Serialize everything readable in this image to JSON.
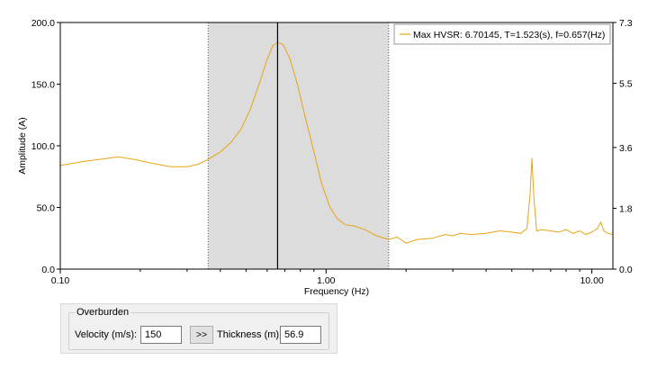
{
  "chart_data": {
    "type": "line",
    "xlabel": "Frequency (Hz)",
    "ylabel": "Amplitude (A)",
    "x_scale": "log",
    "xlim": [
      0.1,
      12.0
    ],
    "ylim": [
      0,
      200
    ],
    "y2lim": [
      0,
      7.3
    ],
    "x_ticks": [
      {
        "v": 0.1,
        "label": "0.10"
      },
      {
        "v": 1,
        "label": "1.00"
      },
      {
        "v": 10,
        "label": "10.00"
      }
    ],
    "y_ticks": [
      {
        "v": 0,
        "label": "0.0"
      },
      {
        "v": 50,
        "label": "50.0"
      },
      {
        "v": 100,
        "label": "100.0"
      },
      {
        "v": 150,
        "label": "150.0"
      },
      {
        "v": 200,
        "label": "200.0"
      }
    ],
    "y2_ticks": [
      {
        "v": 0,
        "label": "0.0"
      },
      {
        "v": 1.8,
        "label": "1.8"
      },
      {
        "v": 3.6,
        "label": "3.6"
      },
      {
        "v": 5.5,
        "label": "5.5"
      },
      {
        "v": 7.3,
        "label": "7.3"
      }
    ],
    "grid": false,
    "legend_position": "top-right",
    "series_color": "#e8a317",
    "shaded_band": {
      "x_start": 0.36,
      "x_end": 1.72,
      "color": "#dcdcdc"
    },
    "peak_marker_x": 0.657,
    "series": [
      {
        "name": "Max HVSR: 6.70145, T=1.523(s), f=0.657(Hz)",
        "x": [
          0.1,
          0.12,
          0.14,
          0.165,
          0.19,
          0.22,
          0.26,
          0.3,
          0.33,
          0.36,
          0.4,
          0.44,
          0.48,
          0.52,
          0.56,
          0.6,
          0.63,
          0.657,
          0.69,
          0.73,
          0.78,
          0.84,
          0.9,
          0.96,
          1.03,
          1.1,
          1.18,
          1.28,
          1.4,
          1.55,
          1.72,
          1.85,
          2.0,
          2.2,
          2.5,
          2.8,
          3.0,
          3.2,
          3.5,
          4.0,
          4.5,
          5.0,
          5.4,
          5.7,
          5.85,
          5.95,
          6.05,
          6.2,
          6.5,
          7.0,
          7.5,
          8.0,
          8.5,
          9.0,
          9.5,
          10.0,
          10.5,
          10.8,
          11.1,
          11.5,
          12.0
        ],
        "y": [
          84,
          87,
          89,
          91,
          89,
          86,
          83,
          83,
          85,
          89,
          95,
          103,
          114,
          130,
          150,
          170,
          181,
          184,
          182,
          171,
          150,
          121,
          95,
          70,
          51,
          41,
          36,
          35,
          32,
          27,
          24,
          26,
          21,
          24,
          25,
          28,
          27,
          29,
          28,
          29,
          31,
          30,
          29,
          33,
          60,
          90,
          58,
          31,
          32,
          31,
          30,
          32,
          29,
          31,
          28,
          30,
          33,
          38,
          31,
          29,
          28
        ]
      }
    ]
  },
  "overburden": {
    "title": "Overburden",
    "velocity_label": "Velocity (m/s):",
    "velocity_value": "150",
    "compute_label": ">>",
    "thickness_label": "Thickness (m):",
    "thickness_value": "56.9"
  }
}
